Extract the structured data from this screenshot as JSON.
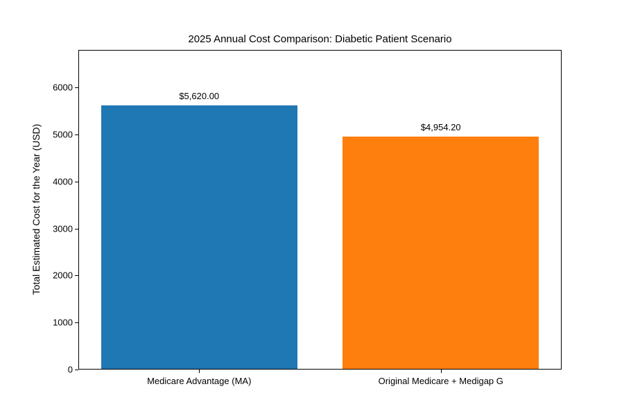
{
  "chart_data": {
    "type": "bar",
    "title": "2025 Annual Cost Comparison: Diabetic Patient Scenario",
    "xlabel": "",
    "ylabel": "Total Estimated Cost for the Year (USD)",
    "categories": [
      "Medicare Advantage (MA)",
      "Original Medicare + Medigap G"
    ],
    "values": [
      5620,
      4954.2
    ],
    "bar_labels": [
      "$5,620.00",
      "$4,954.20"
    ],
    "bar_colors": [
      "#1f77b4",
      "#ff7f0e"
    ],
    "ylim": [
      0,
      6800
    ],
    "yticks": [
      0,
      1000,
      2000,
      3000,
      4000,
      5000,
      6000
    ],
    "grid": false,
    "legend_position": "none",
    "background_color": "#ffffff",
    "spine_color": "#000000",
    "text_color": "#000000"
  }
}
